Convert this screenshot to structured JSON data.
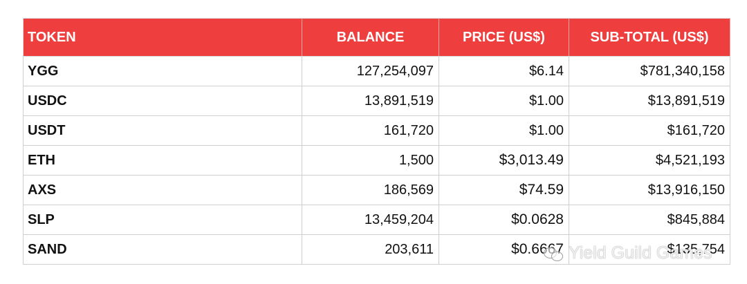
{
  "table": {
    "headers": [
      "TOKEN",
      "BALANCE",
      "PRICE (US$)",
      "SUB-TOTAL (US$)"
    ],
    "rows": [
      {
        "token": "YGG",
        "balance": "127,254,097",
        "price": "$6.14",
        "subtotal": "$781,340,158"
      },
      {
        "token": "USDC",
        "balance": "13,891,519",
        "price": "$1.00",
        "subtotal": "$13,891,519"
      },
      {
        "token": "USDT",
        "balance": "161,720",
        "price": "$1.00",
        "subtotal": "$161,720"
      },
      {
        "token": "ETH",
        "balance": "1,500",
        "price": "$3,013.49",
        "subtotal": "$4,521,193"
      },
      {
        "token": "AXS",
        "balance": "186,569",
        "price": "$74.59",
        "subtotal": "$13,916,150"
      },
      {
        "token": "SLP",
        "balance": "13,459,204",
        "price": "$0.0628",
        "subtotal": "$845,884"
      },
      {
        "token": "SAND",
        "balance": "203,611",
        "price": "$0.6667",
        "subtotal": "$135,754"
      }
    ]
  },
  "watermark": {
    "text": "Yield Guild Games",
    "icon": "wechat-icon"
  },
  "colors": {
    "header_bg": "#ef3e3e",
    "header_text": "#ffffff",
    "grid": "#cfcfcf"
  }
}
